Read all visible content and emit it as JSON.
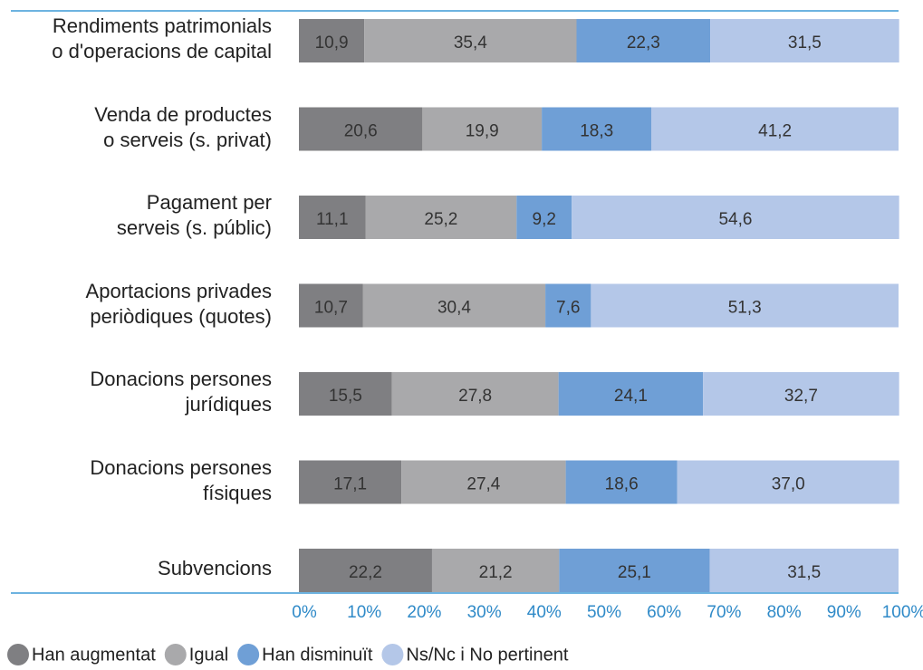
{
  "chart_data": {
    "type": "stacked_barh",
    "categories": [
      "Rendiments patrimonials\no d'operacions de capital",
      "Venda de productes\no serveis (s. privat)",
      "Pagament per\nserveis (s. públic)",
      "Aportacions privades\nperiòdiques (quotes)",
      "Donacions persones\njurídiques",
      "Donacions persones\nfísiques",
      "Subvencions"
    ],
    "series": [
      {
        "name": "Han augmentat",
        "color": "#7f7f82",
        "values": [
          10.9,
          20.6,
          11.1,
          10.7,
          15.5,
          17.1,
          22.2
        ],
        "value_labels": [
          "10,9",
          "20,6",
          "11,1",
          "10,7",
          "15,5",
          "17,1",
          "22,2"
        ]
      },
      {
        "name": "Igual",
        "color": "#a9a9ab",
        "values": [
          35.4,
          19.9,
          25.2,
          30.4,
          27.8,
          27.4,
          21.2
        ],
        "value_labels": [
          "35,4",
          "19,9",
          "25,2",
          "30,4",
          "27,8",
          "27,4",
          "21,2"
        ]
      },
      {
        "name": "Han disminuït",
        "color": "#6f9fd6",
        "values": [
          22.3,
          18.3,
          9.2,
          7.6,
          24.1,
          18.6,
          25.1
        ],
        "value_labels": [
          "22,3",
          "18,3",
          "9,2",
          "7,6",
          "24,1",
          "18,6",
          "25,1"
        ]
      },
      {
        "name": "Ns/Nc i No pertinent",
        "color": "#b4c7e8",
        "values": [
          31.5,
          41.2,
          54.6,
          51.3,
          32.7,
          37.0,
          31.5
        ],
        "value_labels": [
          "31,5",
          "41,2",
          "54,6",
          "51,3",
          "32,7",
          "37,0",
          "31,5"
        ]
      }
    ],
    "xlim": [
      0,
      100
    ],
    "xticks": [
      {
        "value": 0,
        "label": "0%"
      },
      {
        "value": 10,
        "label": "10%"
      },
      {
        "value": 20,
        "label": "20%"
      },
      {
        "value": 30,
        "label": "30%"
      },
      {
        "value": 40,
        "label": "40%"
      },
      {
        "value": 50,
        "label": "50%"
      },
      {
        "value": 60,
        "label": "60%"
      },
      {
        "value": 70,
        "label": "70%"
      },
      {
        "value": 80,
        "label": "80%"
      },
      {
        "value": 90,
        "label": "90%"
      },
      {
        "value": 100,
        "label": "100%"
      }
    ],
    "legend": "bottom-left"
  }
}
